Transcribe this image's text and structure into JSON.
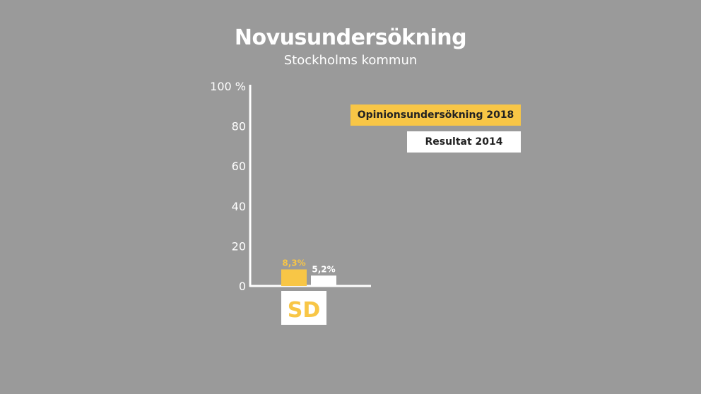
{
  "title": "Novusundersökning",
  "subtitle": "Stockholms kommun",
  "colors": {
    "background": "#9a9a9a",
    "poll_2018": "#f8c646",
    "result_2014": "#ffffff",
    "axis": "#ffffff",
    "party_label_bg": "#ffffff",
    "party_label_text": "#f8c646"
  },
  "legend": {
    "poll_2018": "Opinionsundersökning 2018",
    "result_2014": "Resultat 2014"
  },
  "chart_data": {
    "type": "bar",
    "categories": [
      "SD"
    ],
    "series": [
      {
        "name": "Opinionsundersökning 2018",
        "values": [
          8.3
        ],
        "labels": [
          "8,3%"
        ]
      },
      {
        "name": "Resultat 2014",
        "values": [
          5.2
        ],
        "labels": [
          "5,2%"
        ]
      }
    ],
    "ylim": [
      0,
      100
    ],
    "yticks": [
      0,
      20,
      40,
      60,
      80,
      100
    ],
    "ytick_labels": [
      "0",
      "20",
      "40",
      "60",
      "80",
      "100 %"
    ],
    "grid": false,
    "legend_position": "top-right"
  }
}
